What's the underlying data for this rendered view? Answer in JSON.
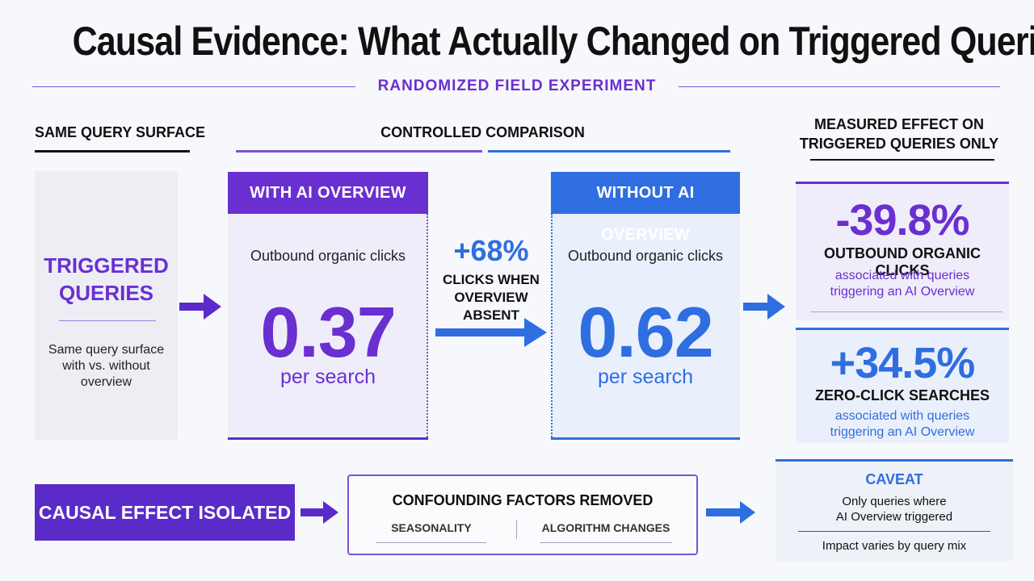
{
  "title": "Causal Evidence: What Actually Changed on Triggered Queries",
  "subtitle": "RANDOMIZED FIELD EXPERIMENT",
  "columns": {
    "left": "SAME QUERY SURFACE",
    "middle": "CONTROLLED COMPARISON",
    "right_line1": "MEASURED EFFECT ON",
    "right_line2": "TRIGGERED QUERIES ONLY"
  },
  "triggered": {
    "title_line1": "TRIGGERED",
    "title_line2": "QUERIES",
    "desc_line1": "Same query surface",
    "desc_line2": "with vs. without",
    "desc_line3": "overview"
  },
  "with_ai": {
    "header": "WITH AI OVERVIEW",
    "metric": "Outbound organic clicks",
    "value": "0.37",
    "unit": "per search"
  },
  "without_ai": {
    "header": "WITHOUT AI OVERVIEW",
    "metric": "Outbound organic clicks",
    "value": "0.62",
    "unit": "per search"
  },
  "lift": {
    "value": "+68%",
    "label_line1": "CLICKS WHEN",
    "label_line2": "OVERVIEW ABSENT"
  },
  "effects": [
    {
      "value": "-39.8%",
      "label": "OUTBOUND ORGANIC CLICKS",
      "desc_line1": "associated with queries",
      "desc_line2": "triggering an AI Overview"
    },
    {
      "value": "+34.5%",
      "label": "ZERO-CLICK SEARCHES",
      "desc_line1": "associated with queries",
      "desc_line2": "triggering an AI Overview"
    }
  ],
  "causal": "CAUSAL EFFECT ISOLATED",
  "confounding": {
    "header": "CONFOUNDING FACTORS REMOVED",
    "items": [
      "SEASONALITY",
      "ALGORITHM CHANGES"
    ]
  },
  "caveat": {
    "header": "CAVEAT",
    "line1": "Only queries where",
    "line2": "AI Overview triggered",
    "note": "Impact varies by query mix"
  },
  "colors": {
    "purple": "#6a2fd0",
    "purple_dark": "#5b2bc9",
    "blue": "#2f6ee0"
  }
}
